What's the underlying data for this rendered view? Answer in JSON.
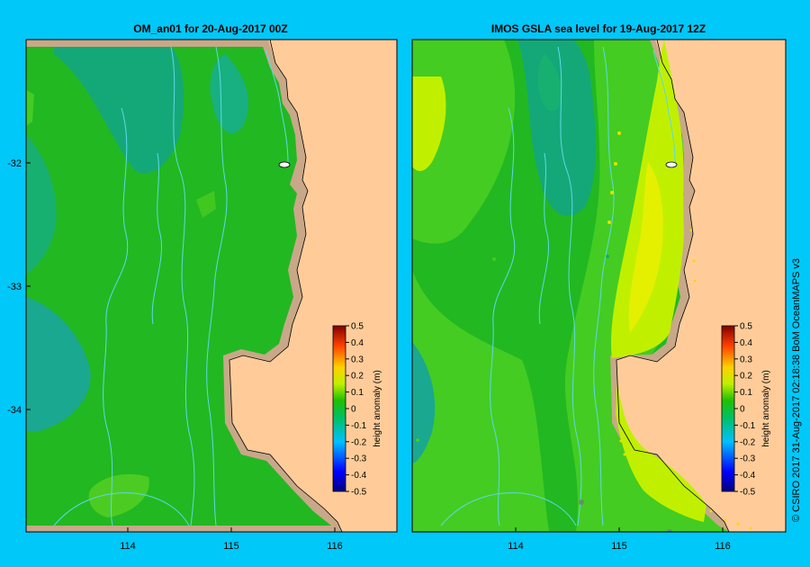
{
  "panels": [
    {
      "title": "OM_an01  for 20-Aug-2017 00Z",
      "x_ticks": [
        "114",
        "115",
        "116"
      ],
      "y_ticks": [
        "-32",
        "-33",
        "-34"
      ],
      "colorbar": {
        "label": "height anomaly  (m)",
        "ticks": [
          "0.5",
          "0.4",
          "0.3",
          "0.2",
          "0.1",
          "0",
          "-0.1",
          "-0.2",
          "-0.3",
          "-0.4",
          "-0.5"
        ]
      }
    },
    {
      "title": "IMOS GSLA sea level   for 19-Aug-2017 12Z",
      "x_ticks": [
        "114",
        "115",
        "116"
      ],
      "colorbar": {
        "label": "height anomaly  (m)",
        "ticks": [
          "0.5",
          "0.4",
          "0.3",
          "0.2",
          "0.1",
          "0",
          "-0.1",
          "-0.2",
          "-0.3",
          "-0.4",
          "-0.5"
        ]
      }
    }
  ],
  "credit": "© CSIRO 2017   31-Aug-2017 02:18:38 BoM OceanMAPS v3",
  "colors": {
    "background": "#00c8f8",
    "land": "#ffcc99",
    "shelf": "#c8a888",
    "green_main": "#22b822",
    "green_light": "#44cc22",
    "green_teal": "#14a878",
    "yellow_green": "#c0f000",
    "yellow": "#e4f000",
    "bathymetry": "#5ed8e8"
  }
}
